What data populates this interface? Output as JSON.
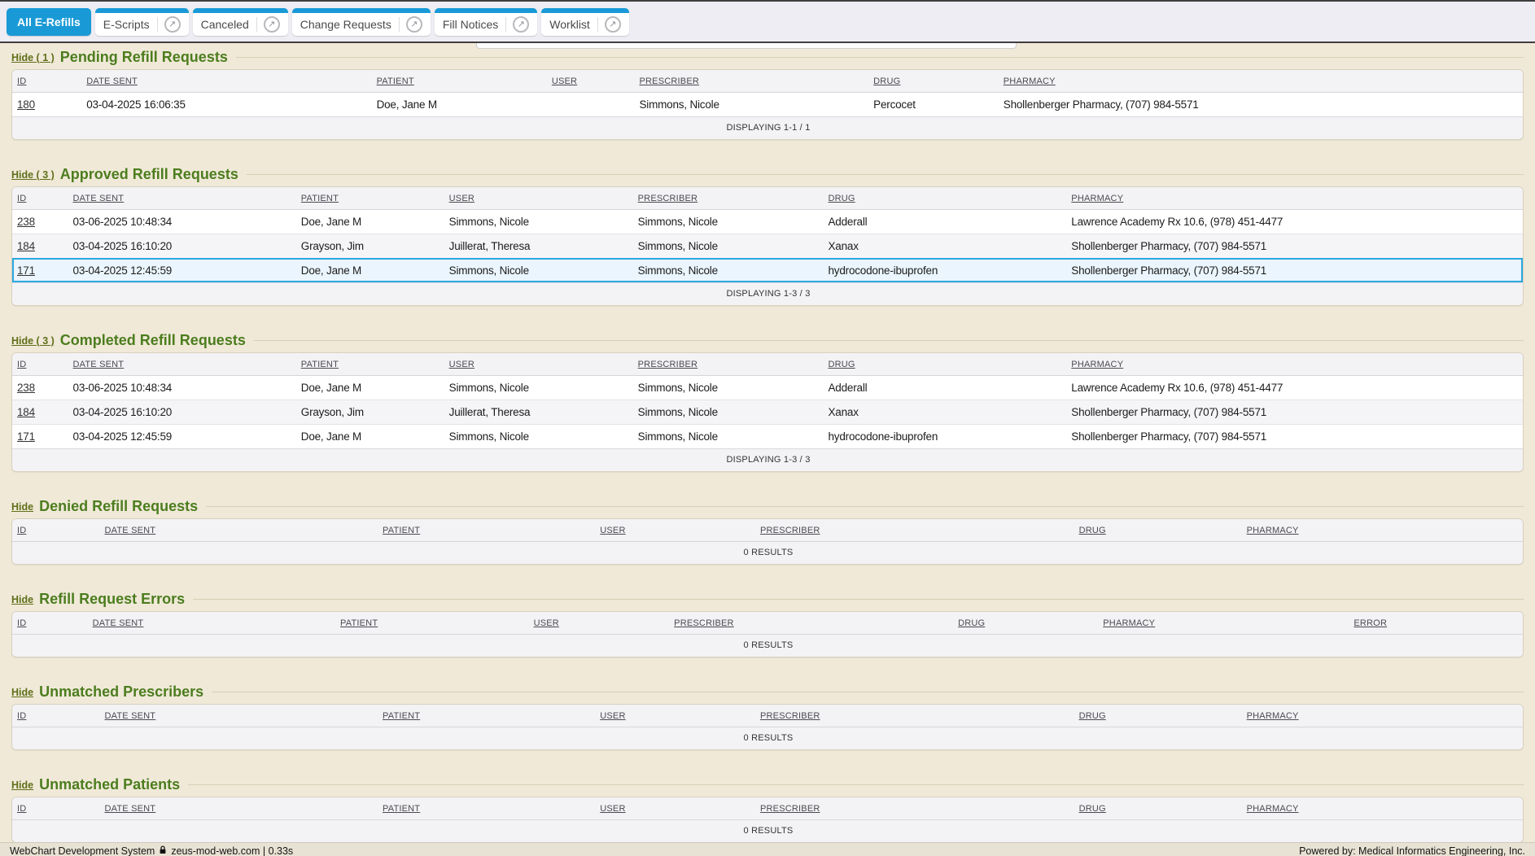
{
  "topbar": {
    "tabs": [
      {
        "label": "All E-Refills",
        "active": true,
        "popout": false
      },
      {
        "label": "E-Scripts",
        "active": false,
        "popout": true
      },
      {
        "label": "Canceled",
        "active": false,
        "popout": true
      },
      {
        "label": "Change Requests",
        "active": false,
        "popout": true
      },
      {
        "label": "Fill Notices",
        "active": false,
        "popout": true
      },
      {
        "label": "Worklist",
        "active": false,
        "popout": true
      }
    ],
    "popout_icon_glyph": "↗"
  },
  "sections": [
    {
      "key": "pending-refill-requests",
      "hide_label": "Hide ( 1 )",
      "title": "Pending Refill Requests",
      "columns": [
        "ID",
        "DATE SENT",
        "PATIENT",
        "USER",
        "PRESCRIBER",
        "DRUG",
        "PHARMACY"
      ],
      "col_widths": [
        "4.7%",
        "19.2%",
        "11.6%",
        "5.8%",
        "15.5%",
        "8.6%",
        "34.6%"
      ],
      "rows": [
        {
          "cells": [
            "180",
            "03-04-2025 16:06:35",
            "Doe, Jane M",
            "",
            "Simmons, Nicole",
            "Percocet",
            "Shollenberger Pharmacy, (707) 984-5571"
          ],
          "highlighted": false
        }
      ],
      "footer": "DISPLAYING 1-1 / 1"
    },
    {
      "key": "approved-refill-requests",
      "hide_label": "Hide ( 3 )",
      "title": "Approved Refill Requests",
      "columns": [
        "ID",
        "DATE SENT",
        "PATIENT",
        "USER",
        "PRESCRIBER",
        "DRUG",
        "PHARMACY"
      ],
      "col_widths": [
        "3.8%",
        "15.1%",
        "9.8%",
        "12.5%",
        "12.6%",
        "16.1%",
        "30.1%"
      ],
      "rows": [
        {
          "cells": [
            "238",
            "03-06-2025 10:48:34",
            "Doe, Jane M",
            "Simmons, Nicole",
            "Simmons, Nicole",
            "Adderall",
            "Lawrence Academy Rx 10.6, (978) 451-4477"
          ],
          "highlighted": false
        },
        {
          "cells": [
            "184",
            "03-04-2025 16:10:20",
            "Grayson, Jim",
            "Juillerat, Theresa",
            "Simmons, Nicole",
            "Xanax",
            "Shollenberger Pharmacy, (707) 984-5571"
          ],
          "highlighted": false
        },
        {
          "cells": [
            "171",
            "03-04-2025 12:45:59",
            "Doe, Jane M",
            "Simmons, Nicole",
            "Simmons, Nicole",
            "hydrocodone-ibuprofen",
            "Shollenberger Pharmacy, (707) 984-5571"
          ],
          "highlighted": true
        }
      ],
      "footer": "DISPLAYING 1-3 / 3"
    },
    {
      "key": "completed-refill-requests",
      "hide_label": "Hide ( 3 )",
      "title": "Completed Refill Requests",
      "columns": [
        "ID",
        "DATE SENT",
        "PATIENT",
        "USER",
        "PRESCRIBER",
        "DRUG",
        "PHARMACY"
      ],
      "col_widths": [
        "3.8%",
        "15.1%",
        "9.8%",
        "12.5%",
        "12.6%",
        "16.1%",
        "30.1%"
      ],
      "rows": [
        {
          "cells": [
            "238",
            "03-06-2025 10:48:34",
            "Doe, Jane M",
            "Simmons, Nicole",
            "Simmons, Nicole",
            "Adderall",
            "Lawrence Academy Rx 10.6, (978) 451-4477"
          ],
          "highlighted": false
        },
        {
          "cells": [
            "184",
            "03-04-2025 16:10:20",
            "Grayson, Jim",
            "Juillerat, Theresa",
            "Simmons, Nicole",
            "Xanax",
            "Shollenberger Pharmacy, (707) 984-5571"
          ],
          "highlighted": false
        },
        {
          "cells": [
            "171",
            "03-04-2025 12:45:59",
            "Doe, Jane M",
            "Simmons, Nicole",
            "Simmons, Nicole",
            "hydrocodone-ibuprofen",
            "Shollenberger Pharmacy, (707) 984-5571"
          ],
          "highlighted": false
        }
      ],
      "footer": "DISPLAYING 1-3 / 3"
    },
    {
      "key": "denied-refill-requests",
      "hide_label": "Hide",
      "title": "Denied Refill Requests",
      "columns": [
        "ID",
        "DATE SENT",
        "PATIENT",
        "USER",
        "PRESCRIBER",
        "DRUG",
        "PHARMACY"
      ],
      "col_widths": [
        "5.9%",
        "18.4%",
        "14.4%",
        "10.6%",
        "21.1%",
        "11.1%",
        "18.5%"
      ],
      "rows": [],
      "footer": "0 RESULTS"
    },
    {
      "key": "refill-request-errors",
      "hide_label": "Hide",
      "title": "Refill Request Errors",
      "columns": [
        "ID",
        "DATE SENT",
        "PATIENT",
        "USER",
        "PRESCRIBER",
        "DRUG",
        "PHARMACY",
        "ERROR"
      ],
      "col_widths": [
        "5.1%",
        "16.4%",
        "12.8%",
        "9.3%",
        "18.8%",
        "9.6%",
        "16.6%",
        "11.4%"
      ],
      "rows": [],
      "footer": "0 RESULTS"
    },
    {
      "key": "unmatched-prescribers",
      "hide_label": "Hide",
      "title": "Unmatched Prescribers",
      "columns": [
        "ID",
        "DATE SENT",
        "PATIENT",
        "USER",
        "PRESCRIBER",
        "DRUG",
        "PHARMACY"
      ],
      "col_widths": [
        "5.9%",
        "18.4%",
        "14.4%",
        "10.6%",
        "21.1%",
        "11.1%",
        "18.5%"
      ],
      "rows": [],
      "footer": "0 RESULTS"
    },
    {
      "key": "unmatched-patients",
      "hide_label": "Hide",
      "title": "Unmatched Patients",
      "columns": [
        "ID",
        "DATE SENT",
        "PATIENT",
        "USER",
        "PRESCRIBER",
        "DRUG",
        "PHARMACY"
      ],
      "col_widths": [
        "5.9%",
        "18.4%",
        "14.4%",
        "10.6%",
        "21.1%",
        "11.1%",
        "18.5%"
      ],
      "rows": [],
      "footer": "0 RESULTS"
    }
  ],
  "page_footer": {
    "left_app": "WebChart Development System",
    "left_host": "zeus-mod-web.com | 0.33s",
    "right": "Powered by: Medical Informatics Engineering, Inc."
  },
  "colors": {
    "accent_blue": "#199ad6",
    "title_green": "#4c7d1e",
    "hide_link_olive": "#5f6f1a",
    "highlight_row_bg": "#eaf5fd",
    "highlight_row_border": "#2ba7e0",
    "page_background": "#f0e9d8"
  }
}
